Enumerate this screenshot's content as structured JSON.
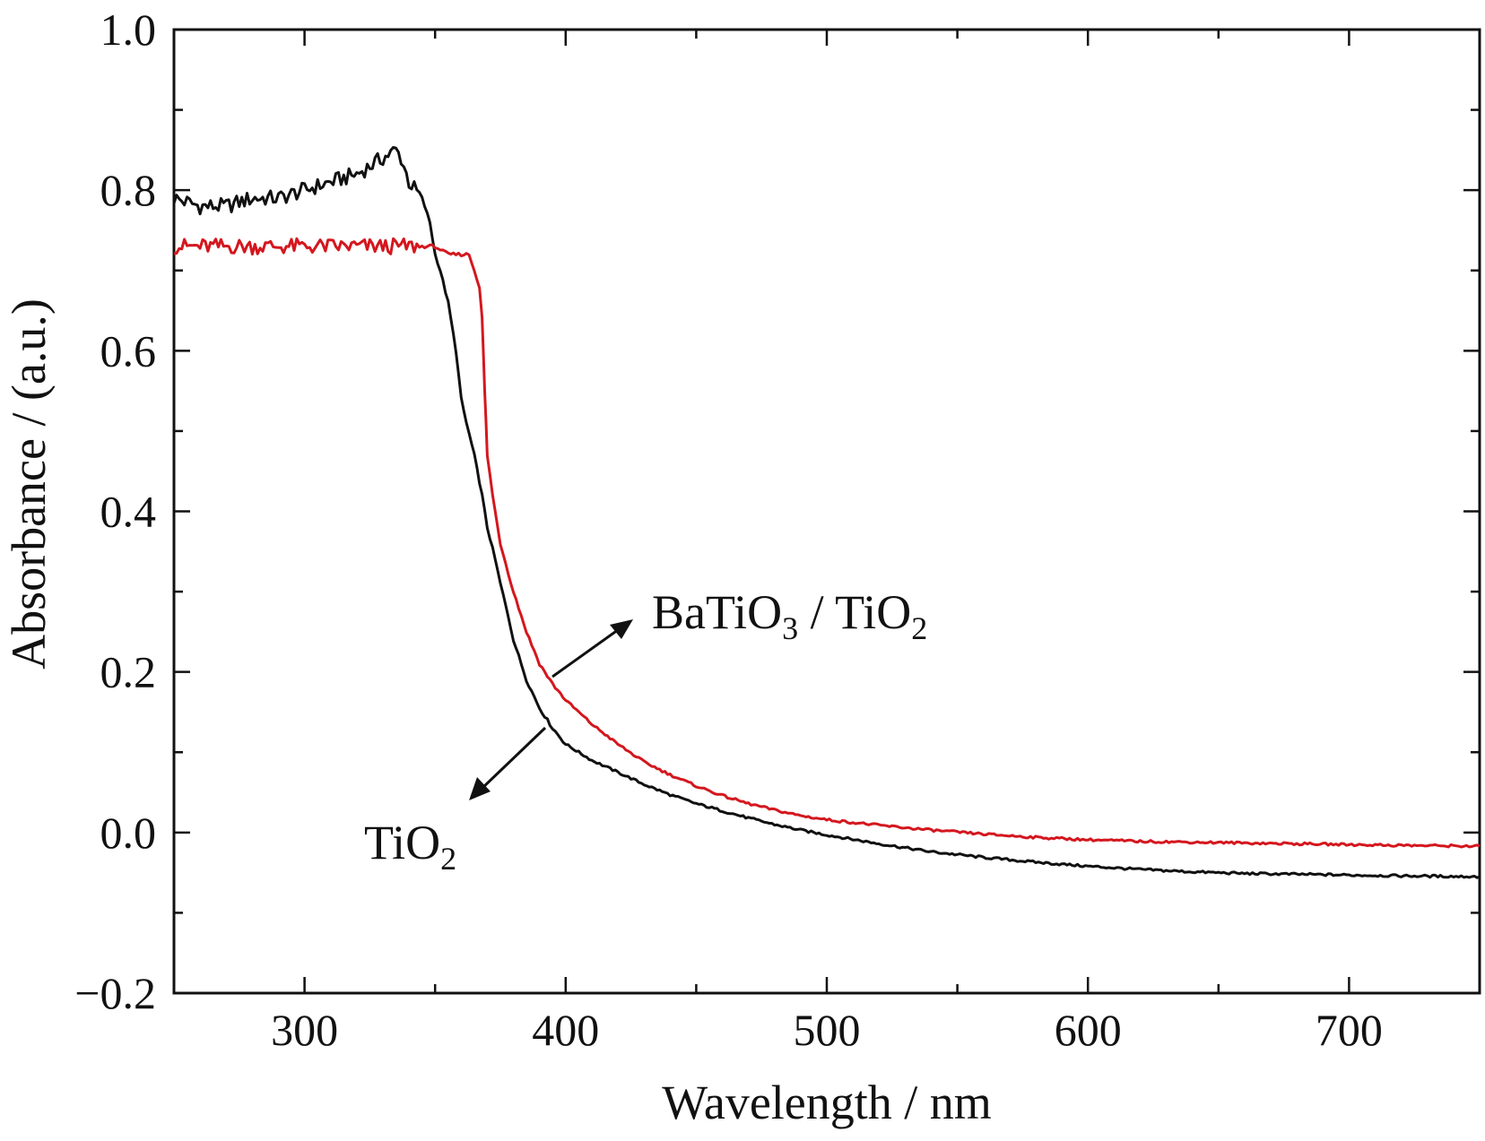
{
  "chart_data": {
    "type": "line",
    "xlabel": "Wavelength / nm",
    "ylabel": "Absorbance / (a.u.)",
    "xlim": [
      250,
      750
    ],
    "ylim": [
      -0.2,
      1.0
    ],
    "x_ticks": [
      300,
      400,
      500,
      600,
      700
    ],
    "x_tick_labels": [
      "300",
      "400",
      "500",
      "600",
      "700"
    ],
    "y_ticks": [
      -0.2,
      0.0,
      0.2,
      0.4,
      0.6,
      0.8,
      1.0
    ],
    "y_tick_labels": [
      "−0.2",
      "0.0",
      "0.2",
      "0.4",
      "0.6",
      "0.8",
      "1.0"
    ],
    "grid": false,
    "series": [
      {
        "color": "#111111",
        "x": [
          250,
          260,
          270,
          280,
          290,
          300,
          310,
          320,
          325,
          330,
          335,
          337,
          340,
          345,
          348,
          350,
          352,
          355,
          358,
          360,
          362,
          365,
          368,
          370,
          373,
          375,
          378,
          380,
          385,
          390,
          395,
          400,
          410,
          420,
          430,
          440,
          450,
          460,
          470,
          480,
          490,
          500,
          520,
          540,
          560,
          580,
          600,
          620,
          640,
          660,
          680,
          700,
          720,
          750
        ],
        "y": [
          0.79,
          0.78,
          0.78,
          0.79,
          0.79,
          0.8,
          0.81,
          0.82,
          0.83,
          0.84,
          0.85,
          0.84,
          0.81,
          0.79,
          0.76,
          0.72,
          0.7,
          0.66,
          0.6,
          0.54,
          0.51,
          0.47,
          0.42,
          0.38,
          0.34,
          0.31,
          0.27,
          0.24,
          0.19,
          0.155,
          0.13,
          0.11,
          0.09,
          0.075,
          0.06,
          0.047,
          0.036,
          0.027,
          0.018,
          0.01,
          0.003,
          -0.003,
          -0.014,
          -0.024,
          -0.031,
          -0.037,
          -0.042,
          -0.046,
          -0.049,
          -0.051,
          -0.052,
          -0.053,
          -0.054,
          -0.055
        ]
      },
      {
        "color": "#d4171e",
        "x": [
          250,
          270,
          290,
          310,
          330,
          345,
          350,
          355,
          360,
          363,
          365,
          367,
          368,
          369,
          370,
          372,
          375,
          380,
          385,
          390,
          395,
          400,
          410,
          420,
          430,
          440,
          450,
          460,
          470,
          480,
          490,
          500,
          520,
          540,
          560,
          580,
          600,
          620,
          640,
          660,
          680,
          700,
          720,
          750
        ],
        "y": [
          0.73,
          0.73,
          0.73,
          0.73,
          0.73,
          0.73,
          0.73,
          0.72,
          0.72,
          0.72,
          0.7,
          0.68,
          0.64,
          0.55,
          0.47,
          0.42,
          0.36,
          0.3,
          0.25,
          0.21,
          0.185,
          0.165,
          0.135,
          0.11,
          0.088,
          0.072,
          0.058,
          0.046,
          0.036,
          0.028,
          0.021,
          0.016,
          0.009,
          0.003,
          -0.002,
          -0.006,
          -0.009,
          -0.011,
          -0.012,
          -0.013,
          -0.014,
          -0.015,
          -0.016,
          -0.017
        ]
      }
    ],
    "annotations": [
      {
        "base": "BaTiO",
        "sub1": "3",
        "mid": " / TiO",
        "sub2": "2"
      },
      {
        "base": "TiO",
        "sub1": "2"
      }
    ]
  }
}
